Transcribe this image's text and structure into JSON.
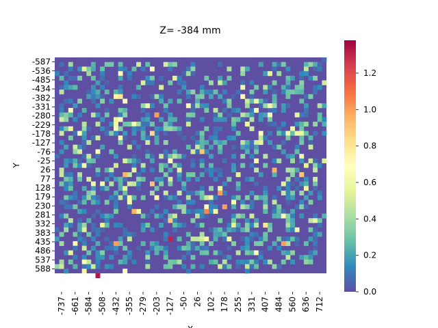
{
  "chart_data": {
    "type": "heatmap",
    "title": "Z= -384 mm",
    "xlabel": "X",
    "ylabel": "Y",
    "x_tick_labels": [
      "-737",
      "-661",
      "-584",
      "-508",
      "-432",
      "-355",
      "-279",
      "-203",
      "-127",
      "-50",
      "26",
      "102",
      "178",
      "255",
      "331",
      "407",
      "484",
      "560",
      "636",
      "712"
    ],
    "y_tick_labels": [
      "-587",
      "-536",
      "-485",
      "-434",
      "-382",
      "-331",
      "-280",
      "-229",
      "-178",
      "-127",
      "-76",
      "-25",
      "26",
      "77",
      "128",
      "179",
      "230",
      "281",
      "332",
      "383",
      "435",
      "486",
      "537",
      "588"
    ],
    "colorbar": {
      "colormap": "Spectral_r",
      "range": [
        0.0,
        1.38
      ],
      "tick_labels": [
        "0.0",
        "0.2",
        "0.4",
        "0.6",
        "0.8",
        "1.0",
        "1.2"
      ],
      "tick_values": [
        0.0,
        0.2,
        0.4,
        0.6,
        0.8,
        1.0,
        1.2
      ]
    },
    "grid_columns": 60,
    "grid_rows": 47,
    "background_value": 0.0,
    "cells": [
      [
        9,
        47,
        0,
        1.33
      ],
      [
        25,
        39,
        0,
        1.3
      ],
      [
        22,
        12,
        0,
        1.0
      ],
      [
        13,
        40,
        0,
        1.0
      ],
      [
        33,
        33,
        0,
        1.05
      ],
      [
        36,
        29,
        0,
        1.0
      ],
      [
        37,
        32,
        0,
        1.0
      ],
      [
        50,
        40,
        0,
        1.0
      ],
      [
        17,
        33,
        0,
        0.95
      ],
      [
        48,
        24,
        0,
        0.95
      ],
      [
        15,
        25,
        0,
        0.95
      ],
      [
        21,
        27,
        0,
        0.9
      ],
      [
        25,
        35,
        0,
        0.9
      ],
      [
        32,
        20,
        0,
        0.9
      ],
      [
        54,
        25,
        0,
        0.9
      ],
      [
        21,
        16,
        0,
        0.85
      ],
      [
        14,
        8,
        0,
        0.8
      ],
      [
        46,
        36,
        0,
        0.8
      ],
      [
        13,
        8,
        0,
        0.75
      ],
      [
        29,
        10,
        0,
        0.65
      ],
      [
        42,
        14,
        0,
        0.6
      ],
      [
        44,
        9,
        0,
        0.6
      ],
      [
        47,
        10,
        0,
        0.6
      ],
      [
        50,
        27,
        0,
        0.55
      ],
      [
        40,
        25,
        0,
        0.55
      ],
      [
        53,
        12,
        0,
        0.55
      ],
      [
        27,
        24,
        0,
        0.55
      ],
      [
        57,
        26,
        0,
        0.5
      ],
      [
        9,
        17,
        0,
        0.5
      ],
      [
        30,
        20,
        0,
        0.5
      ]
    ]
  }
}
